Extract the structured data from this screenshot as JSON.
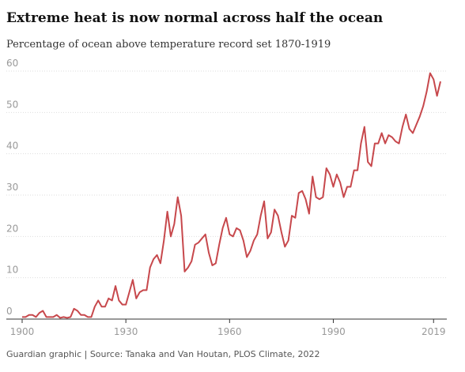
{
  "chart_data": {
    "type": "line",
    "title": "Extreme heat is now normal across half the ocean",
    "subtitle": "Percentage of ocean above temperature record set 1870-1919",
    "source": "Guardian graphic | Source: Tanaka and Van Houtan, PLOS Climate, 2022",
    "x": [
      1900,
      1901,
      1902,
      1903,
      1904,
      1905,
      1906,
      1907,
      1908,
      1909,
      1910,
      1911,
      1912,
      1913,
      1914,
      1915,
      1916,
      1917,
      1918,
      1919,
      1920,
      1921,
      1922,
      1923,
      1924,
      1925,
      1926,
      1927,
      1928,
      1929,
      1930,
      1931,
      1932,
      1933,
      1934,
      1935,
      1936,
      1937,
      1938,
      1939,
      1940,
      1941,
      1942,
      1943,
      1944,
      1945,
      1946,
      1947,
      1948,
      1949,
      1950,
      1951,
      1952,
      1953,
      1954,
      1955,
      1956,
      1957,
      1958,
      1959,
      1960,
      1961,
      1962,
      1963,
      1964,
      1965,
      1966,
      1967,
      1968,
      1969,
      1970,
      1971,
      1972,
      1973,
      1974,
      1975,
      1976,
      1977,
      1978,
      1979,
      1980,
      1981,
      1982,
      1983,
      1984,
      1985,
      1986,
      1987,
      1988,
      1989,
      1990,
      1991,
      1992,
      1993,
      1994,
      1995,
      1996,
      1997,
      1998,
      1999,
      2000,
      2001,
      2002,
      2003,
      2004,
      2005,
      2006,
      2007,
      2008,
      2009,
      2010,
      2011,
      2012,
      2013,
      2014,
      2015,
      2016,
      2017,
      2018,
      2019,
      2020,
      2021
    ],
    "series": [
      {
        "color": "#c7484c",
        "values": [
          0.5,
          0.5,
          1,
          1,
          0.5,
          1.5,
          2,
          0.5,
          0.5,
          0.5,
          1,
          0.3,
          0.5,
          0.3,
          0.5,
          2.5,
          2,
          1,
          1,
          0.5,
          0.5,
          3,
          4.5,
          3,
          3,
          5,
          4.5,
          8,
          4.5,
          3.5,
          3.5,
          6.5,
          9.5,
          5,
          6.5,
          7,
          7,
          12.5,
          14.5,
          15.5,
          13.5,
          19,
          26,
          20,
          23,
          29.5,
          25,
          11.5,
          12.5,
          14,
          18,
          18.5,
          19.5,
          20.5,
          16,
          13,
          13.5,
          18,
          22,
          24.5,
          20.5,
          20,
          22,
          21.5,
          19,
          15,
          16.5,
          19,
          20.5,
          25,
          28.5,
          19.5,
          21,
          26.5,
          25,
          21,
          17.5,
          19,
          25,
          24.5,
          30.5,
          31,
          29,
          25.5,
          34.5,
          29.5,
          29,
          29.5,
          36.5,
          35,
          32,
          35,
          33,
          29.5,
          32,
          32,
          36,
          36,
          42.5,
          46.5,
          38,
          37,
          42.5,
          42.5,
          45,
          42.5,
          44.5,
          44,
          43,
          42.5,
          46.5,
          49.5,
          46,
          45,
          47,
          49,
          51.5,
          55,
          59.5,
          58,
          54,
          57.5
        ]
      }
    ],
    "xlim": [
      1900,
      2021
    ],
    "xticks": [
      1900,
      1930,
      1960,
      1990,
      2019
    ],
    "ylim": [
      0,
      60
    ],
    "yticks": [
      0,
      10,
      20,
      30,
      40,
      50,
      60
    ],
    "grid": true
  }
}
